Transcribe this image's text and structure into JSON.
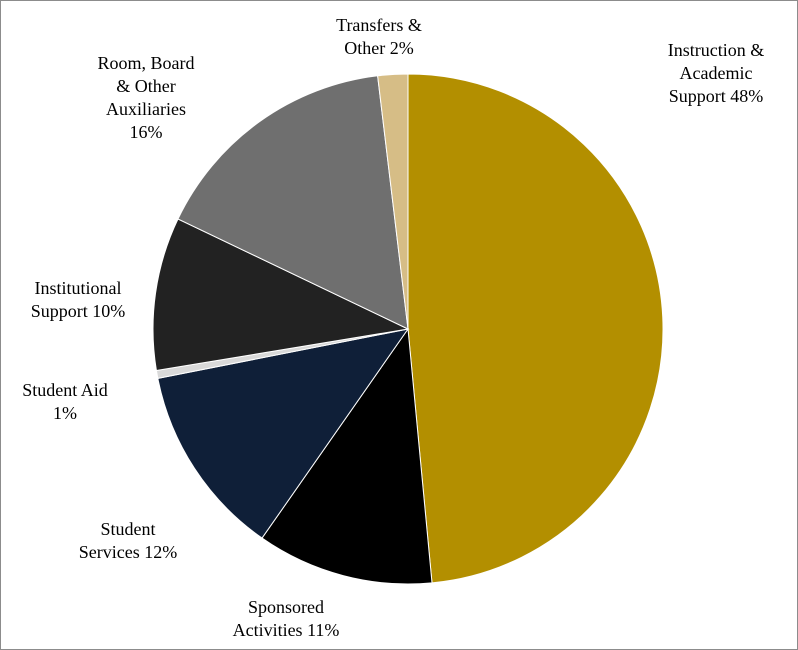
{
  "chart_data": {
    "type": "pie",
    "title": "",
    "legend": "none",
    "start_angle_deg": 0,
    "direction": "clockwise",
    "slices": [
      {
        "label": [
          "Instruction &",
          "Academic",
          "Support 48%"
        ],
        "value": 48.5,
        "color": "#b38f00"
      },
      {
        "label": [
          "Sponsored",
          "Activities 11%"
        ],
        "value": 11.2,
        "color": "#000000"
      },
      {
        "label": [
          "Student",
          "Services 12%"
        ],
        "value": 12.2,
        "color": "#0f1f38"
      },
      {
        "label": [
          "Student Aid",
          "1%"
        ],
        "value": 0.5,
        "color": "#d9d9d9"
      },
      {
        "label": [
          "Institutional",
          "Support 10%"
        ],
        "value": 9.7,
        "color": "#222222"
      },
      {
        "label": [
          "Room, Board",
          "& Other",
          "Auxiliaries",
          "16%"
        ],
        "value": 16.0,
        "color": "#6f6f6f"
      },
      {
        "label": [
          "Transfers &",
          "Other 2%"
        ],
        "value": 1.9,
        "color": "#d6bd86"
      }
    ]
  }
}
